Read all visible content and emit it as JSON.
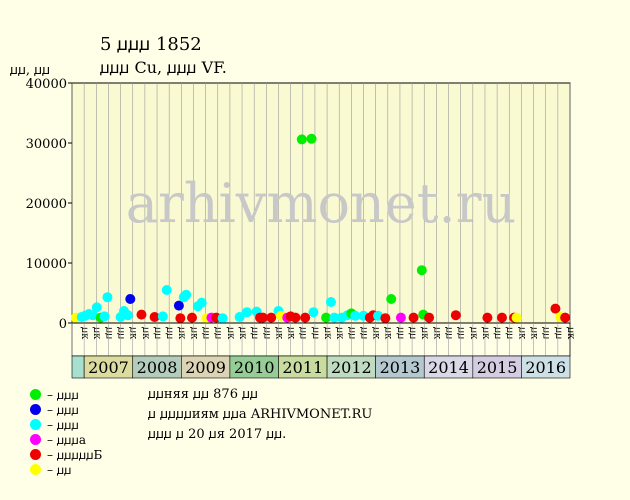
{
  "header": {
    "title": "5 ꙡꙡꙡ 1852",
    "subtitle": "ꙡꙡꙡ Cu, ꙡꙡꙡ VF.",
    "y_unit": "ꙡꙡ, ꙡꙡ"
  },
  "watermark": "arhivmonet.ru",
  "legend": [
    {
      "label": "– ꙡꙡꙡ",
      "color": "#00ee00"
    },
    {
      "label": "– ꙡꙡꙡ",
      "color": "#0000ee"
    },
    {
      "label": "– ꙡꙡꙡ",
      "color": "#00ffff"
    },
    {
      "label": "– ꙡꙡꙡа",
      "color": "#ff00ff"
    },
    {
      "label": "– ꙡꙡꙡꙡꙡБ",
      "color": "#ee0000"
    },
    {
      "label": "– ꙡꙡ",
      "color": "#ffff00"
    }
  ],
  "info": {
    "line1": "ꙡꙡняя ꙡꙡ 876 ꙡꙡ",
    "line2": "ꙡ ꙡꙡꙡꙡиям ꙡꙡа ARHIVMONET.RU",
    "line3": "ꙡꙡꙡ ꙡ 20 ꙡя 2017 ꙡꙡ."
  },
  "chart_data": {
    "type": "scatter",
    "ylim": [
      0,
      40000
    ],
    "yticks": [
      0,
      10000,
      20000,
      30000,
      40000
    ],
    "grid": true,
    "years": [
      "2007",
      "2008",
      "2009",
      "2010",
      "2011",
      "2012",
      "2013",
      "2014",
      "2015",
      "2016"
    ],
    "quarter_labels": [
      "ꙡк",
      "ꙡꙡ",
      "ꙡꙡ",
      "ꙡк"
    ],
    "points": [
      {
        "x": 2006.83,
        "y": 900,
        "c": "yellow"
      },
      {
        "x": 2006.95,
        "y": 1000,
        "c": "cyan"
      },
      {
        "x": 2007.02,
        "y": 1200,
        "c": "cyan"
      },
      {
        "x": 2007.1,
        "y": 1500,
        "c": "cyan"
      },
      {
        "x": 2007.18,
        "y": 1300,
        "c": "cyan"
      },
      {
        "x": 2007.26,
        "y": 2600,
        "c": "cyan"
      },
      {
        "x": 2007.34,
        "y": 900,
        "c": "green"
      },
      {
        "x": 2007.42,
        "y": 1100,
        "c": "cyan"
      },
      {
        "x": 2007.48,
        "y": 4300,
        "c": "cyan"
      },
      {
        "x": 2007.75,
        "y": 1000,
        "c": "cyan"
      },
      {
        "x": 2007.82,
        "y": 2000,
        "c": "cyan"
      },
      {
        "x": 2007.9,
        "y": 1300,
        "c": "cyan"
      },
      {
        "x": 2007.95,
        "y": 4000,
        "c": "blue"
      },
      {
        "x": 2008.18,
        "y": 1400,
        "c": "red"
      },
      {
        "x": 2008.45,
        "y": 1000,
        "c": "red"
      },
      {
        "x": 2008.62,
        "y": 1100,
        "c": "cyan"
      },
      {
        "x": 2008.7,
        "y": 5500,
        "c": "cyan"
      },
      {
        "x": 2008.95,
        "y": 2900,
        "c": "blue"
      },
      {
        "x": 2008.98,
        "y": 800,
        "c": "red"
      },
      {
        "x": 2009.05,
        "y": 4300,
        "c": "cyan"
      },
      {
        "x": 2009.1,
        "y": 4700,
        "c": "cyan"
      },
      {
        "x": 2009.22,
        "y": 900,
        "c": "red"
      },
      {
        "x": 2009.34,
        "y": 2800,
        "c": "cyan"
      },
      {
        "x": 2009.42,
        "y": 3400,
        "c": "cyan"
      },
      {
        "x": 2009.52,
        "y": 800,
        "c": "yellow"
      },
      {
        "x": 2009.62,
        "y": 900,
        "c": "magenta"
      },
      {
        "x": 2009.72,
        "y": 900,
        "c": "red"
      },
      {
        "x": 2009.85,
        "y": 800,
        "c": "cyan"
      },
      {
        "x": 2010.2,
        "y": 1000,
        "c": "cyan"
      },
      {
        "x": 2010.35,
        "y": 1800,
        "c": "cyan"
      },
      {
        "x": 2010.55,
        "y": 1900,
        "c": "cyan"
      },
      {
        "x": 2010.62,
        "y": 900,
        "c": "red"
      },
      {
        "x": 2010.68,
        "y": 900,
        "c": "red"
      },
      {
        "x": 2010.85,
        "y": 900,
        "c": "red"
      },
      {
        "x": 2011.0,
        "y": 2000,
        "c": "cyan"
      },
      {
        "x": 2011.05,
        "y": 1200,
        "c": "yellow"
      },
      {
        "x": 2011.18,
        "y": 900,
        "c": "magenta"
      },
      {
        "x": 2011.25,
        "y": 1100,
        "c": "red"
      },
      {
        "x": 2011.35,
        "y": 900,
        "c": "red"
      },
      {
        "x": 2011.48,
        "y": 30600,
        "c": "green"
      },
      {
        "x": 2011.55,
        "y": 900,
        "c": "red"
      },
      {
        "x": 2011.68,
        "y": 30700,
        "c": "green"
      },
      {
        "x": 2011.72,
        "y": 1800,
        "c": "cyan"
      },
      {
        "x": 2011.98,
        "y": 900,
        "c": "green"
      },
      {
        "x": 2012.08,
        "y": 3500,
        "c": "cyan"
      },
      {
        "x": 2012.15,
        "y": 900,
        "c": "cyan"
      },
      {
        "x": 2012.3,
        "y": 900,
        "c": "cyan"
      },
      {
        "x": 2012.42,
        "y": 1300,
        "c": "cyan"
      },
      {
        "x": 2012.5,
        "y": 1600,
        "c": "green"
      },
      {
        "x": 2012.58,
        "y": 1200,
        "c": "cyan"
      },
      {
        "x": 2012.75,
        "y": 1200,
        "c": "cyan"
      },
      {
        "x": 2012.88,
        "y": 900,
        "c": "red"
      },
      {
        "x": 2012.95,
        "y": 1300,
        "c": "red"
      },
      {
        "x": 2013.05,
        "y": 1200,
        "c": "cyan"
      },
      {
        "x": 2013.2,
        "y": 800,
        "c": "red"
      },
      {
        "x": 2013.32,
        "y": 4000,
        "c": "green"
      },
      {
        "x": 2013.52,
        "y": 900,
        "c": "magenta"
      },
      {
        "x": 2013.78,
        "y": 900,
        "c": "red"
      },
      {
        "x": 2013.95,
        "y": 8800,
        "c": "green"
      },
      {
        "x": 2013.98,
        "y": 1400,
        "c": "green"
      },
      {
        "x": 2014.1,
        "y": 900,
        "c": "red"
      },
      {
        "x": 2014.65,
        "y": 1300,
        "c": "red"
      },
      {
        "x": 2015.3,
        "y": 900,
        "c": "red"
      },
      {
        "x": 2015.6,
        "y": 900,
        "c": "red"
      },
      {
        "x": 2015.85,
        "y": 900,
        "c": "red"
      },
      {
        "x": 2015.9,
        "y": 900,
        "c": "yellow"
      },
      {
        "x": 2016.7,
        "y": 2400,
        "c": "red"
      },
      {
        "x": 2016.8,
        "y": 1000,
        "c": "yellow"
      },
      {
        "x": 2016.9,
        "y": 900,
        "c": "red"
      }
    ]
  }
}
